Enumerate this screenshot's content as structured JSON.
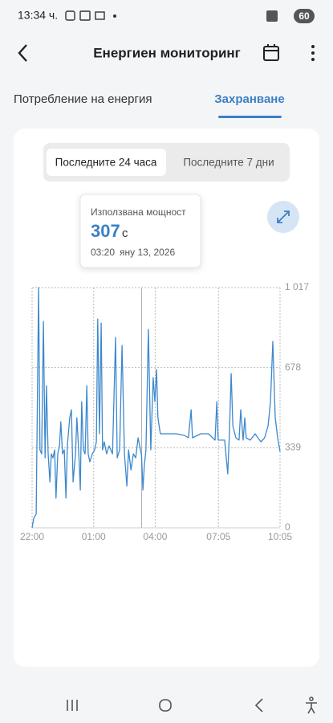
{
  "status_bar": {
    "time": "13:34 ч.",
    "battery": "60"
  },
  "header": {
    "title": "Енергиен мониторинг"
  },
  "tabs": [
    "Потребление на енергия",
    "Захранване"
  ],
  "range_toggle": [
    "Последните 24 часа",
    "Последните 7 дни"
  ],
  "tooltip": {
    "label": "Използвана мощност",
    "value": 307,
    "unit": "с",
    "time": "03:20",
    "date": "яну 13, 2026"
  },
  "chart_data": {
    "type": "line",
    "color": "#3d88cc",
    "x": [
      "22:00",
      "22:05",
      "22:12",
      "22:19",
      "22:23",
      "22:28",
      "22:33",
      "22:38",
      "22:42",
      "22:47",
      "22:52",
      "22:56",
      "23:01",
      "23:06",
      "23:10",
      "23:15",
      "23:20",
      "23:24",
      "23:29",
      "23:34",
      "23:39",
      "23:43",
      "23:50",
      "23:55",
      "00:00",
      "00:07",
      "00:11",
      "00:16",
      "00:21",
      "00:25",
      "00:30",
      "00:35",
      "00:40",
      "00:44",
      "00:49",
      "00:56",
      "01:03",
      "01:08",
      "01:12",
      "01:17",
      "01:22",
      "01:26",
      "01:31",
      "01:38",
      "01:45",
      "01:55",
      "02:04",
      "02:09",
      "02:16",
      "02:23",
      "02:30",
      "02:37",
      "02:42",
      "02:49",
      "02:56",
      "03:03",
      "03:10",
      "03:20",
      "03:24",
      "03:28",
      "03:33",
      "03:40",
      "03:47",
      "03:54",
      "03:59",
      "04:04",
      "04:08",
      "04:15",
      "04:39",
      "05:02",
      "05:26",
      "05:37",
      "05:45",
      "05:49",
      "06:13",
      "06:36",
      "06:55",
      "07:00",
      "07:04",
      "07:23",
      "07:32",
      "07:37",
      "07:42",
      "07:47",
      "07:56",
      "08:05",
      "08:10",
      "08:17",
      "08:22",
      "08:26",
      "08:38",
      "08:52",
      "09:09",
      "09:20",
      "09:30",
      "09:37",
      "09:44",
      "09:51",
      "09:58",
      "10:05"
    ],
    "values": [
      0,
      41,
      58,
      1017,
      330,
      313,
      874,
      296,
      602,
      313,
      194,
      313,
      296,
      330,
      126,
      313,
      347,
      449,
      313,
      330,
      126,
      347,
      466,
      500,
      194,
      313,
      466,
      330,
      160,
      534,
      330,
      313,
      602,
      313,
      279,
      313,
      330,
      364,
      884,
      398,
      867,
      330,
      364,
      313,
      347,
      313,
      806,
      296,
      330,
      772,
      313,
      177,
      330,
      245,
      313,
      296,
      381,
      307,
      160,
      262,
      330,
      840,
      330,
      636,
      534,
      670,
      466,
      398,
      398,
      398,
      391,
      381,
      500,
      381,
      398,
      398,
      371,
      534,
      371,
      371,
      228,
      398,
      653,
      432,
      381,
      371,
      500,
      371,
      466,
      381,
      371,
      398,
      364,
      381,
      432,
      534,
      789,
      466,
      381,
      323
    ],
    "xlim": [
      "22:00",
      "10:05"
    ],
    "xticks": [
      "22:00",
      "01:00",
      "04:00",
      "07:05",
      "10:05"
    ],
    "ylim": [
      0,
      1017
    ],
    "yticks": [
      0,
      339,
      678,
      {
        "value": 1017,
        "label": "1 017"
      }
    ],
    "grid": true
  }
}
